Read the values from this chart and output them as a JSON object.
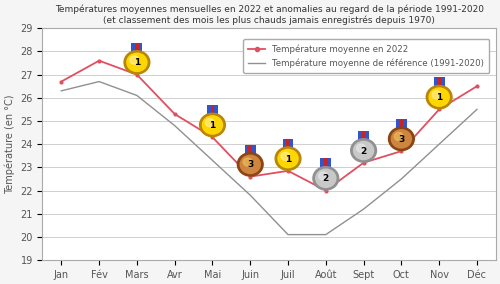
{
  "months": [
    "Jan",
    "Fév",
    "Mars",
    "Avr",
    "Mai",
    "Juin",
    "Juil",
    "Août",
    "Sept",
    "Oct",
    "Nov",
    "Déc"
  ],
  "temp_2022": [
    26.7,
    27.6,
    27.0,
    25.3,
    24.3,
    22.6,
    22.85,
    22.0,
    23.2,
    23.7,
    25.5,
    26.5
  ],
  "temp_ref": [
    26.3,
    26.7,
    26.1,
    24.8,
    23.3,
    21.8,
    20.1,
    20.1,
    21.2,
    22.5,
    24.0,
    25.5
  ],
  "medal_data": [
    {
      "mi": 2,
      "rank": 1,
      "type": "gold"
    },
    {
      "mi": 4,
      "rank": 1,
      "type": "gold"
    },
    {
      "mi": 5,
      "rank": 3,
      "type": "bronze"
    },
    {
      "mi": 6,
      "rank": 1,
      "type": "gold"
    },
    {
      "mi": 7,
      "rank": 2,
      "type": "silver"
    },
    {
      "mi": 8,
      "rank": 2,
      "type": "silver"
    },
    {
      "mi": 9,
      "rank": 3,
      "type": "bronze"
    },
    {
      "mi": 10,
      "rank": 1,
      "type": "gold"
    }
  ],
  "ylim": [
    19,
    29
  ],
  "yticks": [
    19,
    20,
    21,
    22,
    23,
    24,
    25,
    26,
    27,
    28,
    29
  ],
  "title_line1": "Températures moyennes mensuelles en 2022 et anomalies au regard de la période 1991-2020",
  "title_line2": "(et classement des mois les plus chauds jamais enregistrés depuis 1970)",
  "ylabel": "Température (en °C)",
  "legend_2022": "Température moyenne en 2022",
  "legend_ref": "Température moyenne de référence (1991-2020)",
  "line_2022_color": "#e05060",
  "line_ref_color": "#909090",
  "bg_color": "#f5f5f5",
  "plot_bg_color": "#ffffff",
  "grid_color": "#d0d0d0",
  "title_color": "#333333",
  "axis_color": "#555555",
  "gold_outer": "#B8860B",
  "gold_inner": "#FFD700",
  "gold_light": "#FFF0A0",
  "silver_outer": "#909090",
  "silver_inner": "#C8C8C8",
  "silver_light": "#E8E8E8",
  "bronze_outer": "#8B4513",
  "bronze_inner": "#CD853F",
  "bronze_light": "#F0C060"
}
